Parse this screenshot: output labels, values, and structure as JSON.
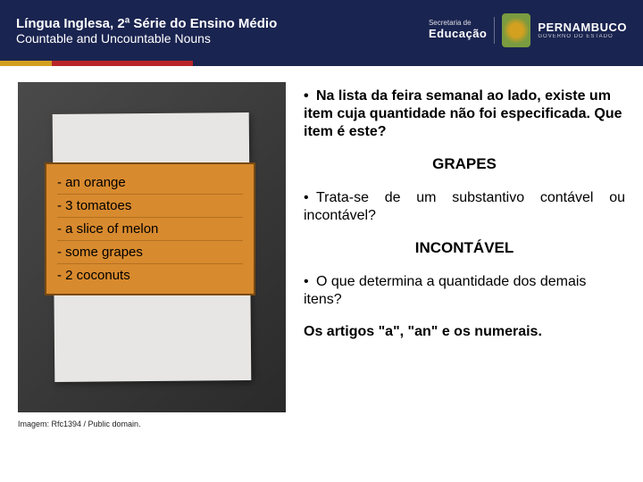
{
  "header": {
    "title": "Língua Inglesa, 2ª Série do Ensino Médio",
    "subtitle": "Countable and Uncountable Nouns",
    "org_small": "Secretaria de",
    "org_big": "Educação",
    "gov_big": "PERNAMBUCO",
    "gov_sub": "GOVERNO DO ESTADO"
  },
  "color_bar": {
    "c1": "#d4a020",
    "c2": "#b8262a",
    "c3": "#1a2450"
  },
  "list": {
    "bg": "#d88a2e",
    "border": "#7a4a10",
    "items": [
      "- an orange",
      "- 3 tomatoes",
      "- a slice of melon",
      "- some grapes",
      "- 2 coconuts"
    ]
  },
  "caption": "Imagem: Rfc1394 / Public domain.",
  "right": {
    "q1": "Na lista da feira semanal ao lado, existe um item cuja quantidade não foi especificada. Que item é este?",
    "a1": "GRAPES",
    "q2": "Trata-se de um substantivo contável ou incontável?",
    "a2": "INCONTÁVEL",
    "q3": "O que determina a quantidade dos demais itens?",
    "a3_prefix": "Os artigos ",
    "a3_q1": "\"a\"",
    "a3_mid1": ", ",
    "a3_q2": "\"an\"",
    "a3_mid2": " e os ",
    "a3_end": "numerais."
  }
}
